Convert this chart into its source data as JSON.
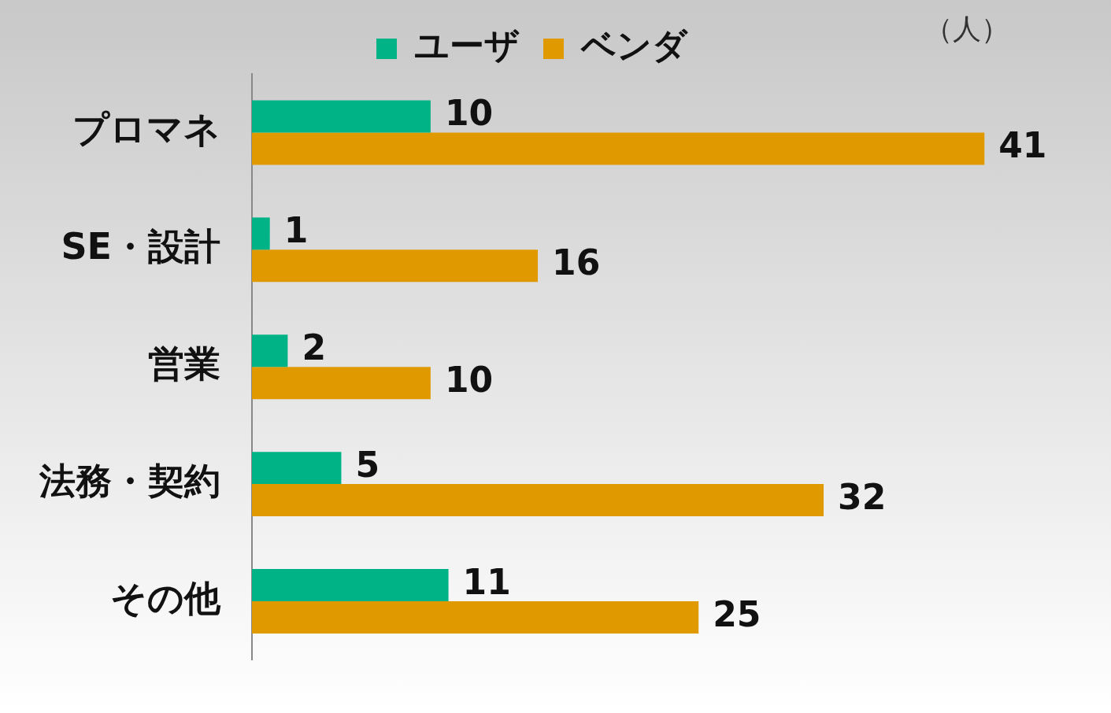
{
  "chart_data": {
    "type": "bar",
    "orientation": "horizontal",
    "categories": [
      "プロマネ",
      "SE・設計",
      "営業",
      "法務・契約",
      "その他"
    ],
    "series": [
      {
        "name": "ユーザ",
        "color": "#00b386",
        "values": [
          10,
          1,
          2,
          5,
          11
        ]
      },
      {
        "name": "ベンダ",
        "color": "#e09a00",
        "values": [
          41,
          16,
          10,
          32,
          25
        ]
      }
    ],
    "data_labels": true,
    "legend": "top",
    "grid": false,
    "annotations": [
      "（人）"
    ]
  }
}
